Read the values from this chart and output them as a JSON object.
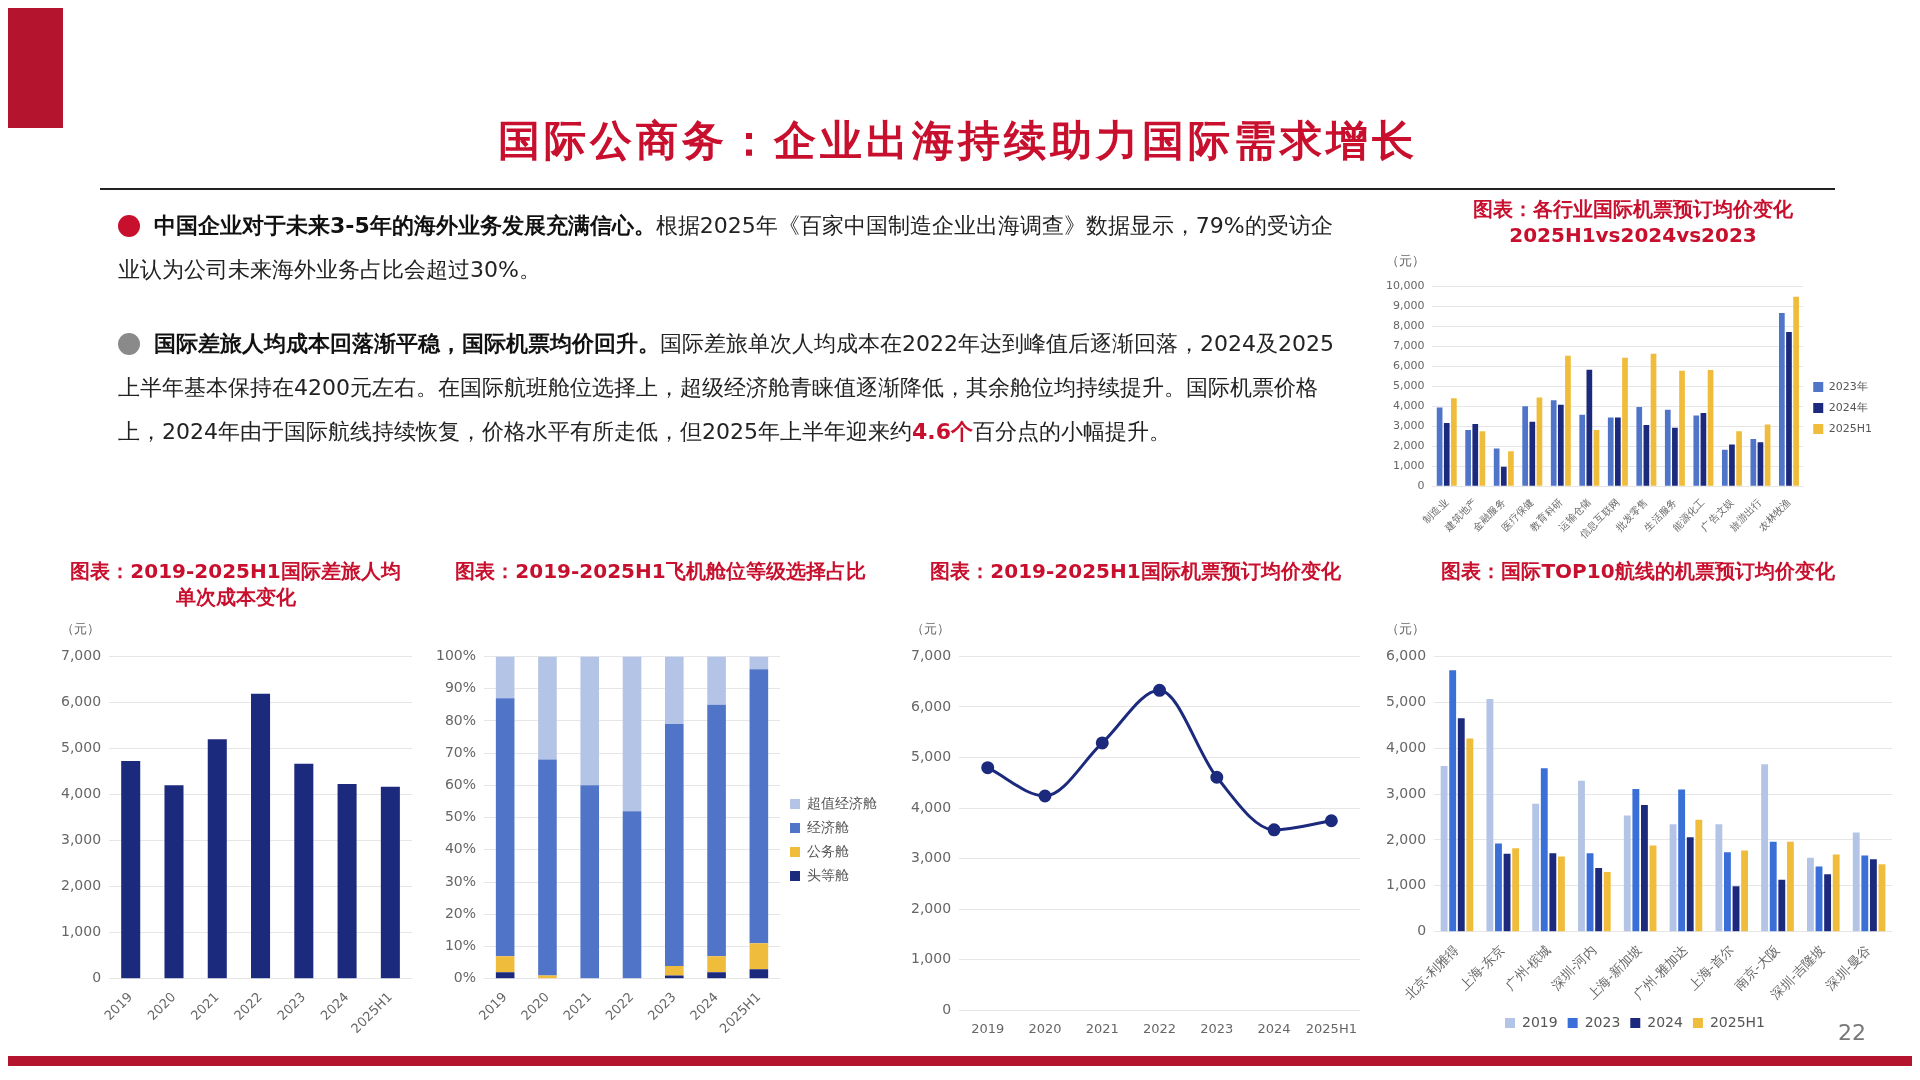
{
  "chart_data": [
    {
      "type": "other",
      "title": "国际公商务：企业出海持续助力国际需求增长",
      "annotations": [
        "中国企业对于未来3-5年的海外业务发展充满信心。",
        "根据2025年《百家中国制造企业出海调查》数据显示，79%的受访企业认为公司未来海外业务占比会超过30%。",
        "国际差旅人均成本回落渐平稳，国际机票均价回升。",
        "国际差旅单次人均成本在2022年达到峰值后逐渐回落，2024及2025上半年基本保持在4200元左右。在国际航班舱位选择上，超级经济舱青睐值逐渐降低，其余舱位均持续提升。国际机票价格上，2024年由于国际航线持续恢复，价格水平有所走低，但2025年上半年迎来约",
        "4.6个",
        "百分点的小幅提升。",
        "22"
      ]
    },
    {
      "type": "bar",
      "title": "图表：各行业国际机票预订均价变化",
      "subtitle": "2025H1vs2024vs2023",
      "ylabel": "（元）",
      "categories": [
        "制造业",
        "建筑地产",
        "金融服务",
        "医疗保健",
        "教育科研",
        "运输仓储",
        "信息互联网",
        "批发零售",
        "生活服务",
        "能源化工",
        "广告文娱",
        "旅游出行",
        "农林牧渔"
      ],
      "series": [
        {
          "name": "2023年",
          "color": "#4f74c8",
          "values": [
            3940,
            2820,
            1890,
            4000,
            4310,
            3580,
            3440,
            3970,
            3830,
            3540,
            1830,
            2360,
            8680
          ]
        },
        {
          "name": "2024年",
          "color": "#1c2a7e",
          "values": [
            3170,
            3120,
            970,
            3230,
            4080,
            5830,
            3440,
            3060,
            2930,
            3660,
            2090,
            2200,
            7720
          ]
        },
        {
          "name": "2025H1",
          "color": "#f0bc3c",
          "values": [
            4410,
            2750,
            1750,
            4440,
            6540,
            2820,
            6440,
            6630,
            5780,
            5820,
            2750,
            3090,
            9490
          ]
        }
      ],
      "ylim": [
        0,
        10000
      ],
      "yticks": [
        {
          "value": 0,
          "label": "0"
        },
        {
          "value": 1000,
          "label": "1,000"
        },
        {
          "value": 2000,
          "label": "2,000"
        },
        {
          "value": 3000,
          "label": "3,000"
        },
        {
          "value": 4000,
          "label": "4,000"
        },
        {
          "value": 5000,
          "label": "5,000"
        },
        {
          "value": 6000,
          "label": "6,000"
        },
        {
          "value": 7000,
          "label": "7,000"
        },
        {
          "value": 8000,
          "label": "8,000"
        },
        {
          "value": 9000,
          "label": "9,000"
        },
        {
          "value": 10000,
          "label": "10,000"
        }
      ],
      "grid": "y",
      "legend": "right"
    },
    {
      "type": "bar",
      "title": "图表：2019-2025H1国际差旅人均单次成本变化",
      "ylabel": "（元）",
      "categories": [
        "2019",
        "2020",
        "2021",
        "2022",
        "2023",
        "2024",
        "2025H1"
      ],
      "values": [
        4730,
        4200,
        5200,
        6190,
        4670,
        4230,
        4170
      ],
      "color": "#1c2a7e",
      "ylim": [
        0,
        7000
      ],
      "yticks": [
        {
          "value": 0,
          "label": "0"
        },
        {
          "value": 1000,
          "label": "1,000"
        },
        {
          "value": 2000,
          "label": "2,000"
        },
        {
          "value": 3000,
          "label": "3,000"
        },
        {
          "value": 4000,
          "label": "4,000"
        },
        {
          "value": 5000,
          "label": "5,000"
        },
        {
          "value": 6000,
          "label": "6,000"
        },
        {
          "value": 7000,
          "label": "7,000"
        }
      ],
      "grid": "y"
    },
    {
      "type": "bar",
      "title": "图表：2019-2025H1飞机舱位等级选择占比",
      "stacked": true,
      "categories": [
        "2019",
        "2020",
        "2021",
        "2022",
        "2023",
        "2024",
        "2025H1"
      ],
      "series": [
        {
          "name": "头等舱",
          "color": "#1c2a7e",
          "values": [
            2,
            0,
            0,
            0,
            1,
            2,
            3
          ]
        },
        {
          "name": "公务舱",
          "color": "#f0bc3c",
          "values": [
            5,
            1,
            0,
            0,
            3,
            5,
            8
          ]
        },
        {
          "name": "经济舱",
          "color": "#4f74c8",
          "values": [
            80,
            67,
            60,
            52,
            75,
            78,
            85
          ]
        },
        {
          "name": "超值经济舱",
          "color": "#b4c4e6",
          "values": [
            13,
            32,
            40,
            48,
            21,
            15,
            4
          ]
        }
      ],
      "ylim": [
        0,
        100
      ],
      "yticks": [
        {
          "value": 0,
          "label": "0%"
        },
        {
          "value": 10,
          "label": "10%"
        },
        {
          "value": 20,
          "label": "20%"
        },
        {
          "value": 30,
          "label": "30%"
        },
        {
          "value": 40,
          "label": "40%"
        },
        {
          "value": 50,
          "label": "50%"
        },
        {
          "value": 60,
          "label": "60%"
        },
        {
          "value": 70,
          "label": "70%"
        },
        {
          "value": 80,
          "label": "80%"
        },
        {
          "value": 90,
          "label": "90%"
        },
        {
          "value": 100,
          "label": "100%"
        }
      ],
      "grid": "y",
      "legend": "right"
    },
    {
      "type": "line",
      "title": "图表：2019-2025H1国际机票预订均价变化",
      "ylabel": "（元）",
      "categories": [
        "2019",
        "2020",
        "2021",
        "2022",
        "2023",
        "2024",
        "2025H1"
      ],
      "values": [
        4800,
        4240,
        5290,
        6330,
        4610,
        3570,
        3750
      ],
      "color": "#1c2a7e",
      "marker": "circle",
      "ylim": [
        0,
        7000
      ],
      "yticks": [
        {
          "value": 0,
          "label": "0"
        },
        {
          "value": 1000,
          "label": "1,000"
        },
        {
          "value": 2000,
          "label": "2,000"
        },
        {
          "value": 3000,
          "label": "3,000"
        },
        {
          "value": 4000,
          "label": "4,000"
        },
        {
          "value": 5000,
          "label": "5,000"
        },
        {
          "value": 6000,
          "label": "6,000"
        },
        {
          "value": 7000,
          "label": "7,000"
        }
      ],
      "grid": "y"
    },
    {
      "type": "bar",
      "title": "图表：国际TOP10航线的机票预订均价变化",
      "ylabel": "（元）",
      "categories": [
        "北京-利雅得",
        "上海-东京",
        "广州-槟城",
        "深圳-河内",
        "上海-新加坡",
        "广州-雅加达",
        "上海-首尔",
        "南京-大阪",
        "深圳-吉隆坡",
        "深圳-曼谷"
      ],
      "series": [
        {
          "name": "2019",
          "color": "#b4c4e6",
          "values": [
            3610,
            5070,
            2790,
            3290,
            2530,
            2340,
            2340,
            3650,
            1610,
            2160
          ]
        },
        {
          "name": "2023",
          "color": "#3a6fd8",
          "values": [
            5700,
            1920,
            3560,
            1710,
            3110,
            3100,
            1730,
            1960,
            1420,
            1660
          ]
        },
        {
          "name": "2024",
          "color": "#1c2a7e",
          "values": [
            4650,
            1700,
            1710,
            1390,
            2760,
            2060,
            990,
            1130,
            1250,
            1580
          ]
        },
        {
          "name": "2025H1",
          "color": "#f0bc3c",
          "values": [
            4210,
            1820,
            1640,
            1300,
            1880,
            2440,
            1770,
            1960,
            1680,
            1470
          ]
        }
      ],
      "ylim": [
        0,
        6000
      ],
      "yticks": [
        {
          "value": 0,
          "label": "0"
        },
        {
          "value": 1000,
          "label": "1,000"
        },
        {
          "value": 2000,
          "label": "2,000"
        },
        {
          "value": 3000,
          "label": "3,000"
        },
        {
          "value": 4000,
          "label": "4,000"
        },
        {
          "value": 5000,
          "label": "5,000"
        },
        {
          "value": 6000,
          "label": "6,000"
        }
      ],
      "grid": "y",
      "legend": "bottom"
    }
  ]
}
